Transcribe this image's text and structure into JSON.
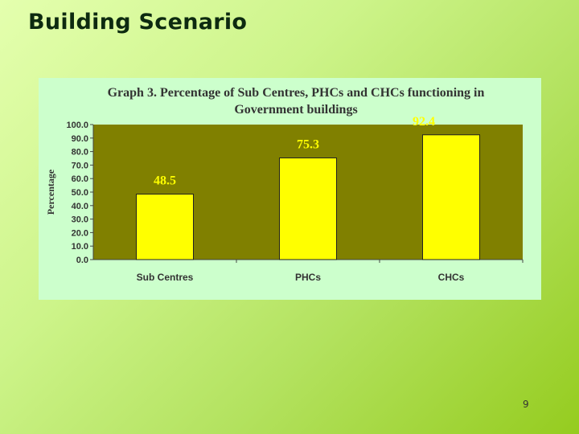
{
  "slide": {
    "title": "Building Scenario",
    "page_number": "9"
  },
  "colors": {
    "background_gradient": [
      "#e4ffae",
      "#95cc1f"
    ],
    "chart_panel": "#ccffcc",
    "plot_area": "#808000",
    "bar_fill": "#ffff00",
    "text": "#333333"
  },
  "chart_data": {
    "type": "bar",
    "title": "Graph 3. Percentage of Sub Centres, PHCs and CHCs functioning in Government buildings",
    "title_lines": [
      "Graph 3. Percentage of Sub Centres, PHCs and CHCs functioning in",
      "Government buildings"
    ],
    "categories": [
      "Sub Centres",
      "PHCs",
      "CHCs"
    ],
    "values": [
      48.5,
      75.3,
      92.4
    ],
    "data_labels": [
      "48.5",
      "75.3",
      "92.4"
    ],
    "xlabel": "",
    "ylabel": "Percentage",
    "ylim": [
      0,
      100
    ],
    "yticks": [
      "0.0",
      "10.0",
      "20.0",
      "30.0",
      "40.0",
      "50.0",
      "60.0",
      "70.0",
      "80.0",
      "90.0",
      "100.0"
    ],
    "grid": false,
    "legend": "none"
  }
}
